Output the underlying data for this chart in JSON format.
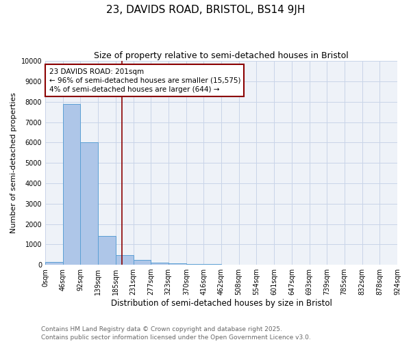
{
  "title": "23, DAVIDS ROAD, BRISTOL, BS14 9JH",
  "subtitle": "Size of property relative to semi-detached houses in Bristol",
  "xlabel": "Distribution of semi-detached houses by size in Bristol",
  "ylabel": "Number of semi-detached properties",
  "bar_color": "#aec6e8",
  "bar_edge_color": "#5a9fd4",
  "bin_edges": [
    0,
    46,
    92,
    139,
    185,
    231,
    277,
    323,
    370,
    416,
    462,
    508,
    554,
    601,
    647,
    693,
    739,
    785,
    832,
    878,
    924
  ],
  "bar_values": [
    150,
    7900,
    6000,
    1400,
    475,
    225,
    115,
    80,
    50,
    30,
    10,
    5,
    3,
    2,
    1,
    1,
    0,
    0,
    0,
    0
  ],
  "x_tick_labels": [
    "0sqm",
    "46sqm",
    "92sqm",
    "139sqm",
    "185sqm",
    "231sqm",
    "277sqm",
    "323sqm",
    "370sqm",
    "416sqm",
    "462sqm",
    "508sqm",
    "554sqm",
    "601sqm",
    "647sqm",
    "693sqm",
    "739sqm",
    "785sqm",
    "832sqm",
    "878sqm",
    "924sqm"
  ],
  "ylim": [
    0,
    10000
  ],
  "yticks": [
    0,
    1000,
    2000,
    3000,
    4000,
    5000,
    6000,
    7000,
    8000,
    9000,
    10000
  ],
  "property_size": 201,
  "vline_color": "#8b0000",
  "annotation_title": "23 DAVIDS ROAD: 201sqm",
  "annotation_line1": "← 96% of semi-detached houses are smaller (15,575)",
  "annotation_line2": "4% of semi-detached houses are larger (644) →",
  "annotation_box_color": "#8b0000",
  "grid_color": "#c8d4e8",
  "background_color": "#eef2f8",
  "footer_line1": "Contains HM Land Registry data © Crown copyright and database right 2025.",
  "footer_line2": "Contains public sector information licensed under the Open Government Licence v3.0.",
  "title_fontsize": 11,
  "subtitle_fontsize": 9,
  "xlabel_fontsize": 8.5,
  "ylabel_fontsize": 8,
  "tick_fontsize": 7,
  "annotation_fontsize": 7.5,
  "footer_fontsize": 6.5
}
